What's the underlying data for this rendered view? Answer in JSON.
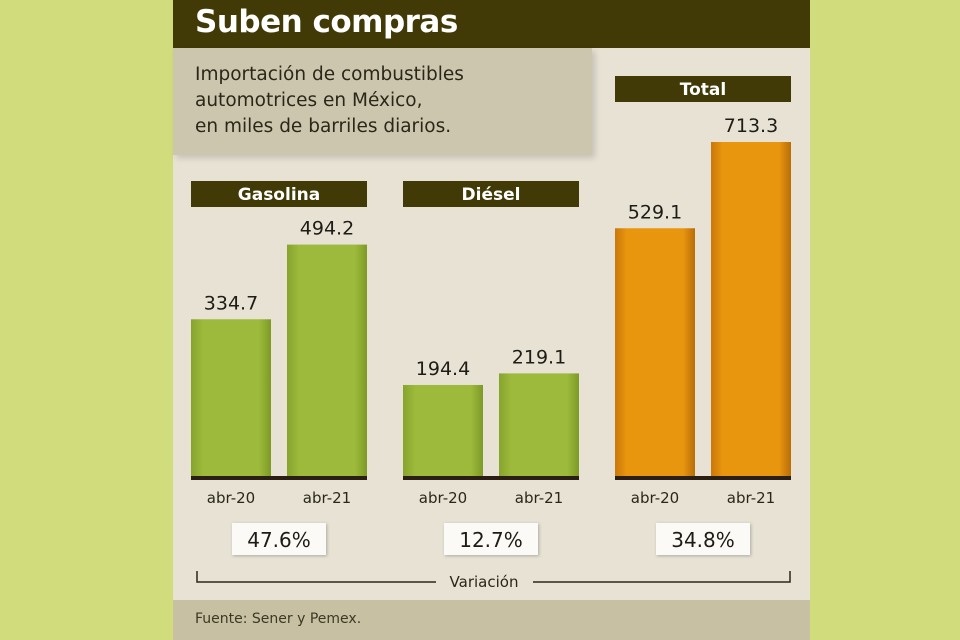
{
  "header": {
    "title": "Suben compras"
  },
  "subtitle": "Importación de combustibles\nautomotrices en México,\nen miles de barriles diarios.",
  "source": "Fuente: Sener y Pemex.",
  "variation_label": "Variación",
  "colors": {
    "green": "#9ab83a",
    "orange": "#e8940f",
    "dark": "#413a06",
    "baseline": "#2a1f12"
  },
  "chart_data": {
    "type": "bar",
    "title": "Suben compras",
    "ylabel": "miles de barriles diarios",
    "categories": [
      "abr-20",
      "abr-21"
    ],
    "ylim": [
      0,
      713.3
    ],
    "groups": [
      {
        "name": "Gasolina",
        "values": [
          334.7,
          494.2
        ],
        "value_labels": [
          "334.7",
          "494.2"
        ],
        "variation": "47.6%",
        "color": "green"
      },
      {
        "name": "Diésel",
        "values": [
          194.4,
          219.1
        ],
        "value_labels": [
          "194.4",
          "219.1"
        ],
        "variation": "12.7%",
        "color": "green"
      },
      {
        "name": "Total",
        "values": [
          529.1,
          713.3
        ],
        "value_labels": [
          "529.1",
          "713.3"
        ],
        "variation": "34.8%",
        "color": "orange"
      }
    ]
  }
}
